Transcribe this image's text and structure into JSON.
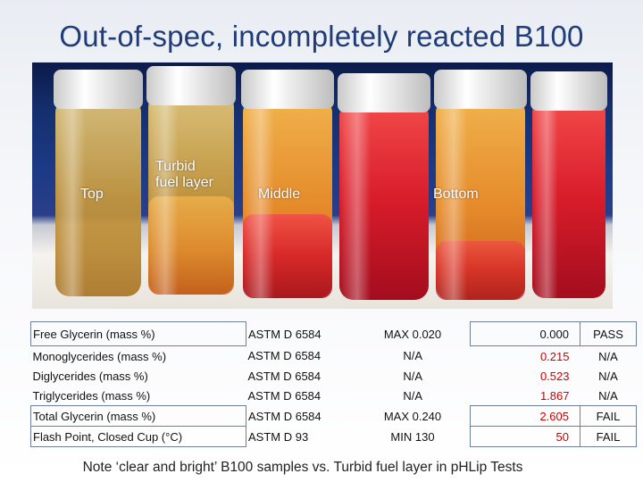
{
  "slide": {
    "title": "Out-of-spec, incompletely reacted B100",
    "photo_labels": {
      "top": "Top",
      "turbid_line1": "Turbid",
      "turbid_line2": "fuel layer",
      "middle": "Middle",
      "bottom": "Bottom"
    },
    "rows": [
      {
        "property": "Free Glycerin (mass %)",
        "method": "ASTM D 6584",
        "spec": "MAX 0.020",
        "value": "0.000",
        "result": "PASS",
        "value_color": "#111111"
      },
      {
        "property": "Monoglycerides (mass %)",
        "method": "ASTM D 6584",
        "spec": "N/A",
        "value": "0.215",
        "result": "N/A",
        "value_color": "#d00000"
      },
      {
        "property": "Diglycerides (mass %)",
        "method": "ASTM D 6584",
        "spec": "N/A",
        "value": "0.523",
        "result": "N/A",
        "value_color": "#d00000"
      },
      {
        "property": "Triglycerides (mass %)",
        "method": "ASTM D 6584",
        "spec": "N/A",
        "value": "1.867",
        "result": "N/A",
        "value_color": "#d00000"
      },
      {
        "property": "Total Glycerin (mass %)",
        "method": "ASTM D 6584",
        "spec": "MAX 0.240",
        "value": "2.605",
        "result": "FAIL",
        "value_color": "#d00000"
      },
      {
        "property": "Flash Point, Closed Cup (°C)",
        "method": "ASTM D 93",
        "spec": "MIN 130",
        "value": "50",
        "result": "FAIL",
        "value_color": "#d00000"
      }
    ],
    "note": "Note ‘clear and bright’ B100 samples vs. Turbid fuel layer in pHLip Tests"
  },
  "colors": {
    "title": "#1f3b7a",
    "fail_value": "#d00000"
  }
}
